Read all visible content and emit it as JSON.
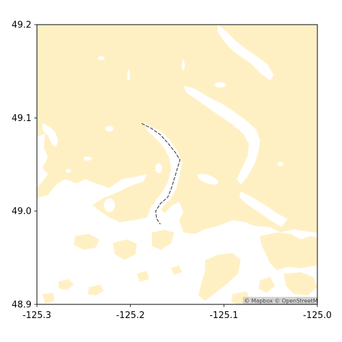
{
  "map": {
    "basemap": {
      "land_color": "#FFF0C4",
      "water_color": "#FFFFFF",
      "frame_color": "#000000"
    },
    "extent": {
      "lon": [
        -125.3,
        -125.0
      ],
      "lat": [
        48.9,
        49.2
      ]
    },
    "x_ticks": [
      {
        "value": -125.3,
        "label": "-125.3"
      },
      {
        "value": -125.2,
        "label": "-125.2"
      },
      {
        "value": -125.1,
        "label": "-125.1"
      },
      {
        "value": -125.0,
        "label": "-125.0"
      }
    ],
    "y_ticks": [
      {
        "value": 48.9,
        "label": "48.9"
      },
      {
        "value": 49.0,
        "label": "49.0"
      },
      {
        "value": 49.1,
        "label": "49.1"
      },
      {
        "value": 49.2,
        "label": "49.2"
      }
    ],
    "route": {
      "color": "#444444",
      "style": "dashed",
      "points": [
        [
          -125.188,
          49.094
        ],
        [
          -125.178,
          49.089
        ],
        [
          -125.168,
          49.082
        ],
        [
          -125.16,
          49.073
        ],
        [
          -125.152,
          49.063
        ],
        [
          -125.147,
          49.055
        ],
        [
          -125.15,
          49.045
        ],
        [
          -125.153,
          49.035
        ],
        [
          -125.156,
          49.025
        ],
        [
          -125.16,
          49.015
        ],
        [
          -125.168,
          49.008
        ],
        [
          -125.173,
          49.0
        ],
        [
          -125.172,
          48.992
        ],
        [
          -125.168,
          48.986
        ]
      ]
    },
    "attribution": "© Mapbox © OpenStreetMap"
  }
}
